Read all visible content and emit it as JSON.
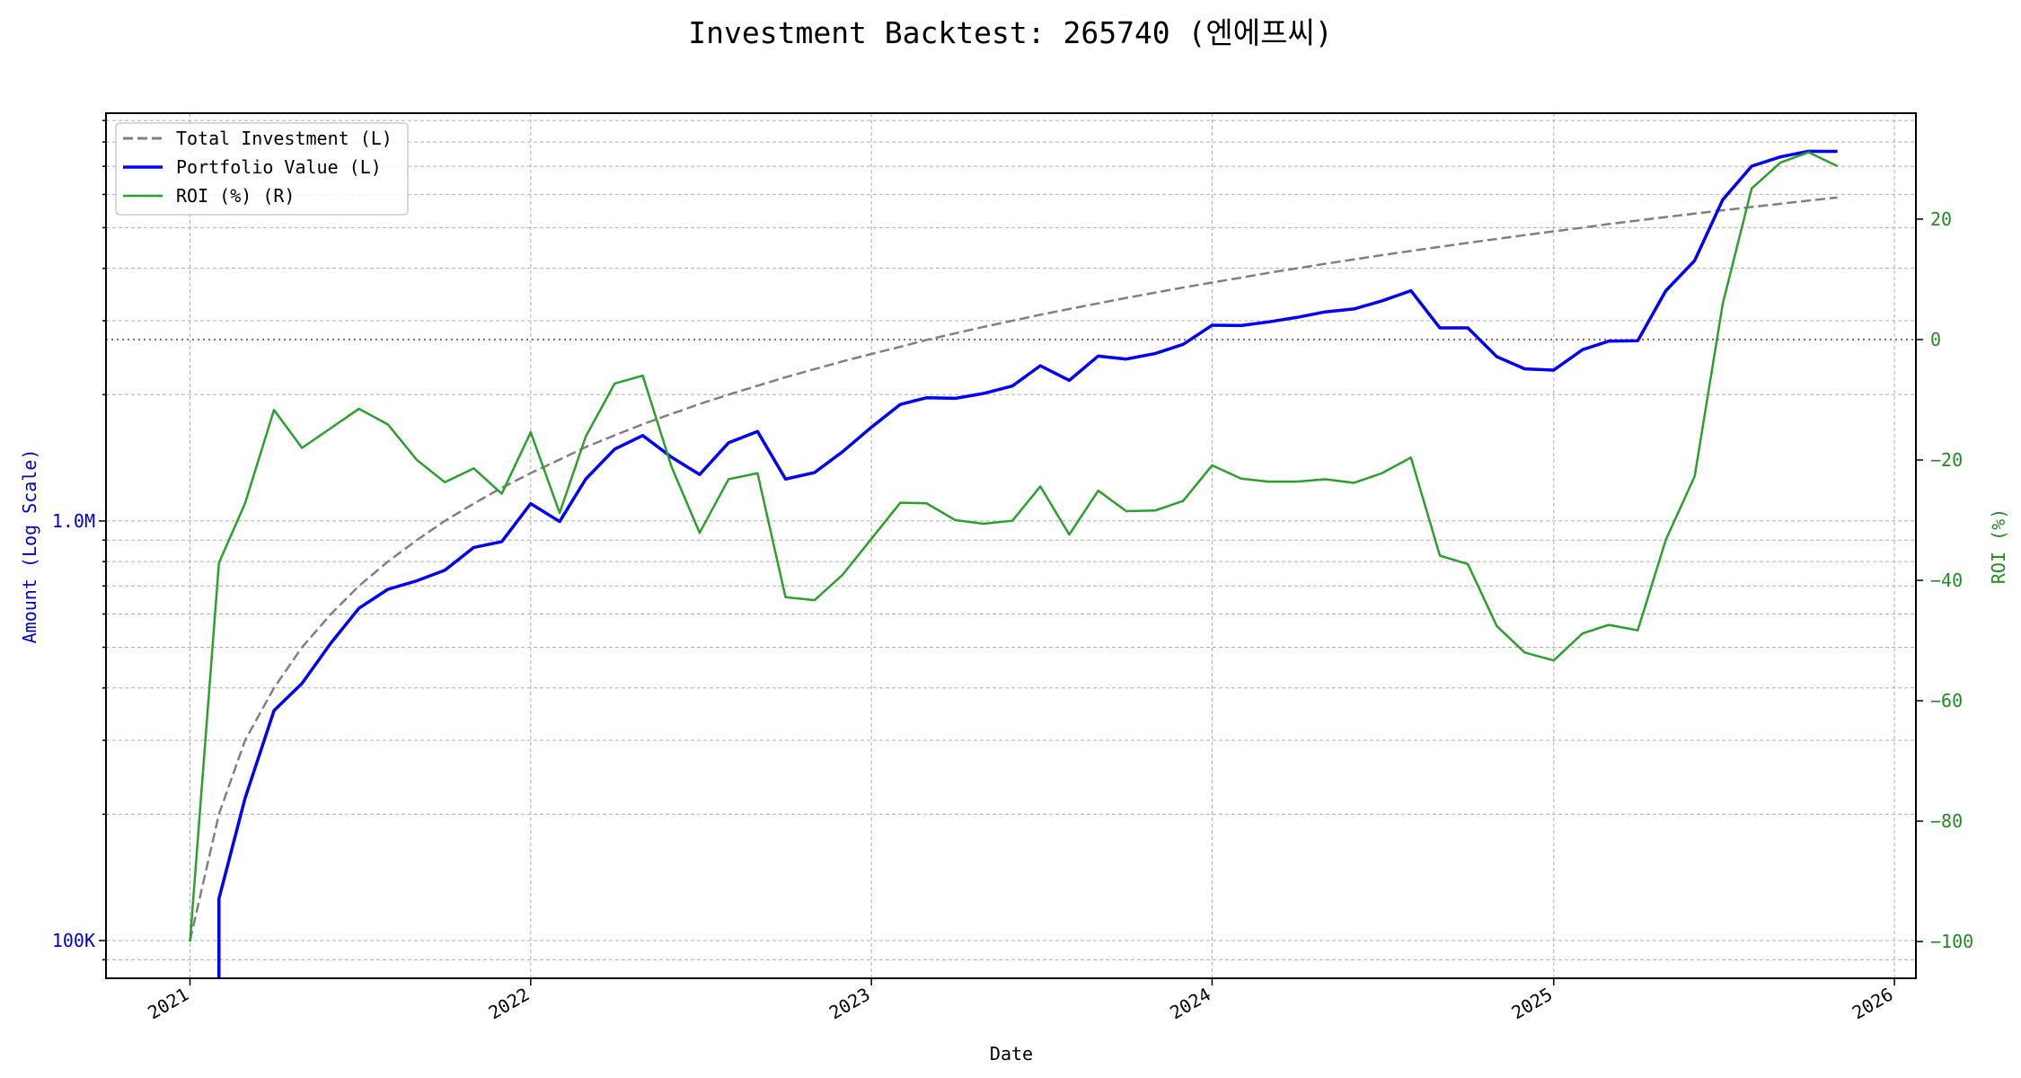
{
  "chart_data": {
    "type": "line",
    "title": "Investment Backtest: 265740 (엔에프씨)",
    "xlabel": "Date",
    "ylabel_left": "Amount (Log Scale)",
    "ylabel_right": "ROI (%)",
    "x_ticks": [
      "2021",
      "2022",
      "2023",
      "2024",
      "2025",
      "2026"
    ],
    "xlim": [
      "2020-10-03",
      "2026-01-24"
    ],
    "ylim_left": [
      81300,
      9370000
    ],
    "ylim_right": [
      -106.1,
      37.6
    ],
    "left_scale": "log",
    "left_ticks": [
      {
        "value": 100000,
        "label": "100K"
      },
      {
        "value": 1000000,
        "label": "1.0M"
      }
    ],
    "right_ticks": [
      {
        "value": -100,
        "label": "−100"
      },
      {
        "value": -80,
        "label": "−80"
      },
      {
        "value": -60,
        "label": "−60"
      },
      {
        "value": -40,
        "label": "−40"
      },
      {
        "value": -20,
        "label": "−20"
      },
      {
        "value": 0,
        "label": "0"
      },
      {
        "value": 20,
        "label": "20"
      }
    ],
    "grid": true,
    "reference_line": {
      "axis": "right",
      "value": 0,
      "color": "#b22222",
      "style": "dotted"
    },
    "legend_position": "top-left",
    "x": [
      "2021-01",
      "2021-02",
      "2021-03",
      "2021-04",
      "2021-05",
      "2021-06",
      "2021-07",
      "2021-08",
      "2021-09",
      "2021-10",
      "2021-11",
      "2021-12",
      "2022-01",
      "2022-02",
      "2022-03",
      "2022-04",
      "2022-05",
      "2022-06",
      "2022-07",
      "2022-08",
      "2022-09",
      "2022-10",
      "2022-11",
      "2022-12",
      "2023-01",
      "2023-02",
      "2023-03",
      "2023-04",
      "2023-05",
      "2023-06",
      "2023-07",
      "2023-08",
      "2023-09",
      "2023-10",
      "2023-11",
      "2023-12",
      "2024-01",
      "2024-02",
      "2024-03",
      "2024-04",
      "2024-05",
      "2024-06",
      "2024-07",
      "2024-08",
      "2024-09",
      "2024-10",
      "2024-11",
      "2024-12",
      "2025-01",
      "2025-02",
      "2025-03",
      "2025-04",
      "2025-05",
      "2025-06",
      "2025-07",
      "2025-08",
      "2025-09",
      "2025-10",
      "2025-11"
    ],
    "series": [
      {
        "name": "Total Investment (L)",
        "axis": "left",
        "color": "#808080",
        "style": "dashed",
        "values": [
          100000,
          200000,
          300000,
          400000,
          500000,
          600000,
          700000,
          800000,
          900000,
          1000000,
          1100000,
          1200000,
          1300000,
          1400000,
          1500000,
          1600000,
          1700000,
          1800000,
          1900000,
          2000000,
          2100000,
          2200000,
          2300000,
          2400000,
          2500000,
          2600000,
          2700000,
          2800000,
          2900000,
          3000000,
          3100000,
          3200000,
          3300000,
          3400000,
          3500000,
          3600000,
          3700000,
          3800000,
          3900000,
          4000000,
          4100000,
          4200000,
          4300000,
          4400000,
          4500000,
          4600000,
          4700000,
          4800000,
          4900000,
          5000000,
          5100000,
          5200000,
          5300000,
          5400000,
          5500000,
          5600000,
          5700000,
          5800000,
          5900000
        ]
      },
      {
        "name": "Portfolio Value (L)",
        "axis": "left",
        "color": "#0000ff",
        "style": "solid",
        "values": [
          0,
          125800,
          218400,
          353200,
          410000,
          511800,
          619500,
          687200,
          720000,
          763000,
          864600,
          892800,
          1099800,
          996800,
          1258500,
          1483200,
          1598000,
          1418400,
          1290100,
          1536000,
          1633800,
          1258400,
          1304100,
          1461600,
          1672500,
          1895400,
          1965600,
          1960000,
          2012600,
          2097000,
          2343600,
          2163200,
          2471700,
          2431000,
          2506000,
          2635200,
          2926700,
          2922200,
          2979600,
          3056000,
          3148800,
          3200400,
          3345400,
          3537600,
          2884500,
          2884200,
          2462800,
          2304000,
          2288300,
          2560000,
          2682600,
          2688400,
          3535100,
          4174200,
          5824500,
          7005600,
          7375800,
          7603800,
          7599200
        ]
      },
      {
        "name": "ROI (%) (R)",
        "axis": "right",
        "color": "#2ca02c",
        "style": "solid",
        "values": [
          -100,
          -37.1,
          -27.2,
          -11.7,
          -18.0,
          -14.7,
          -11.5,
          -14.1,
          -20.0,
          -23.7,
          -21.4,
          -25.6,
          -15.4,
          -28.8,
          -16.1,
          -7.3,
          -6.0,
          -21.2,
          -32.1,
          -23.2,
          -22.2,
          -42.8,
          -43.3,
          -39.1,
          -33.1,
          -27.1,
          -27.2,
          -30.0,
          -30.6,
          -30.1,
          -24.4,
          -32.4,
          -25.1,
          -28.5,
          -28.4,
          -26.8,
          -20.9,
          -23.1,
          -23.6,
          -23.6,
          -23.2,
          -23.8,
          -22.2,
          -19.6,
          -35.9,
          -37.3,
          -47.6,
          -52.0,
          -53.3,
          -48.8,
          -47.4,
          -48.3,
          -33.3,
          -22.7,
          5.9,
          25.1,
          29.4,
          31.1,
          28.8
        ]
      }
    ],
    "colors": {
      "left_axis": "#0000cc",
      "right_axis": "#228b22"
    }
  }
}
